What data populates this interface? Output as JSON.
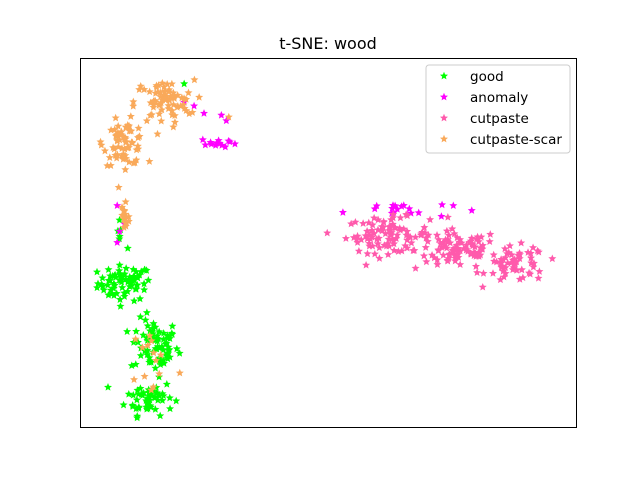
{
  "chart_data": {
    "type": "scatter",
    "title": "t-SNE: wood",
    "xlabel": "",
    "ylabel": "",
    "xlim": [
      0,
      100
    ],
    "ylim": [
      0,
      100
    ],
    "ticks": "none",
    "grid": false,
    "marker": "star",
    "legend_position": "top-right",
    "series": [
      {
        "name": "good",
        "color": "#00ff00",
        "clusters": [
          {
            "cx": 9,
            "cy": 39,
            "rx": 4.5,
            "ry": 4,
            "n": 70
          },
          {
            "cx": 15,
            "cy": 22,
            "rx": 4,
            "ry": 6,
            "n": 70
          },
          {
            "cx": 14,
            "cy": 8,
            "rx": 4,
            "ry": 4,
            "n": 55
          },
          {
            "cx": 8,
            "cy": 52,
            "rx": 1,
            "ry": 3,
            "n": 6
          }
        ],
        "points": [
          [
            21,
            93
          ],
          [
            7.5,
            79
          ]
        ]
      },
      {
        "name": "anomaly",
        "color": "#ff00ff",
        "clusters": [
          {
            "cx": 28,
            "cy": 77,
            "rx": 3,
            "ry": 1.2,
            "n": 14
          },
          {
            "cx": 64,
            "cy": 59,
            "rx": 9,
            "ry": 2,
            "n": 18
          }
        ],
        "points": [
          [
            23,
            87
          ],
          [
            25,
            85
          ],
          [
            21,
            88
          ],
          [
            28.5,
            84.5
          ],
          [
            29.5,
            83
          ],
          [
            8,
            53
          ],
          [
            9,
            55
          ],
          [
            7.5,
            50
          ],
          [
            7.5,
            60
          ]
        ]
      },
      {
        "name": "cutpaste",
        "color": "#ff5aac",
        "clusters": [
          {
            "cx": 62,
            "cy": 52,
            "rx": 7,
            "ry": 4,
            "n": 90
          },
          {
            "cx": 76,
            "cy": 48,
            "rx": 7,
            "ry": 4.5,
            "n": 90
          },
          {
            "cx": 88,
            "cy": 44,
            "rx": 5,
            "ry": 4,
            "n": 60
          }
        ],
        "points": []
      },
      {
        "name": "cutpaste-scar",
        "color": "#f9a95a",
        "clusters": [
          {
            "cx": 9,
            "cy": 77,
            "rx": 3.5,
            "ry": 5,
            "n": 70
          },
          {
            "cx": 17,
            "cy": 88,
            "rx": 5,
            "ry": 5,
            "n": 70
          },
          {
            "cx": 9,
            "cy": 57,
            "rx": 0.8,
            "ry": 5,
            "n": 16
          },
          {
            "cx": 15,
            "cy": 18,
            "rx": 4,
            "ry": 9,
            "n": 14
          }
        ],
        "points": [
          [
            30,
            84
          ]
        ]
      }
    ]
  }
}
